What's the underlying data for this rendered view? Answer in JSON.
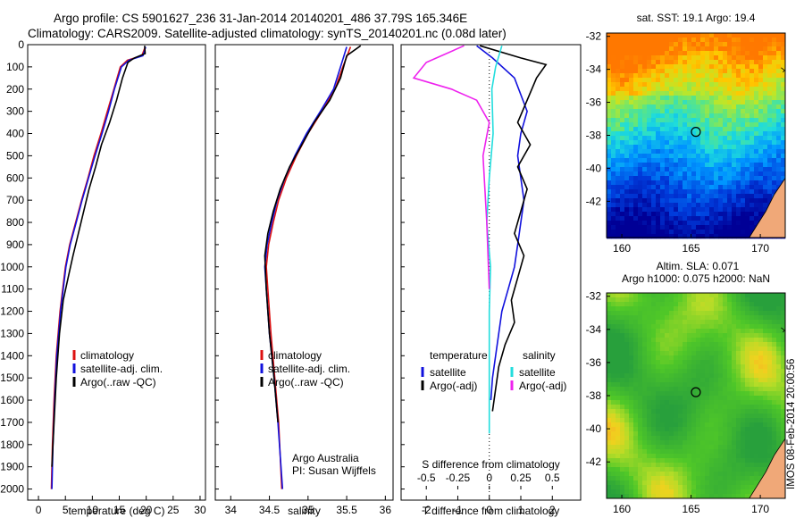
{
  "titles": {
    "line1": "Argo profile: CS 5901627_236 31-Jan-2014 20140201_486 37.79S 165.346E",
    "line2": "Climatology: CARS2009. Satellite-adjusted climatology: synTS_20140201.nc (0.08d later)"
  },
  "credits": {
    "line1": "Argo Australia",
    "line2": "PI: Susan Wijffels"
  },
  "watermark": "IMOS 08-Feb-2014 20:00:56",
  "colors": {
    "climatology": "#dd1111",
    "satellite": "#1111dd",
    "argo": "#000000",
    "sal_satellite": "#22dddd",
    "sal_argo": "#ee22ee"
  },
  "chart_data": [
    {
      "id": "temperature",
      "type": "line",
      "xlabel": "temperature (deg C)",
      "ylabel": "",
      "xlim": [
        -2,
        31
      ],
      "ylim": [
        2050,
        0
      ],
      "xticks": [
        0,
        5,
        10,
        15,
        20,
        25,
        30
      ],
      "yticks": [
        0,
        100,
        200,
        300,
        400,
        500,
        600,
        700,
        800,
        900,
        1000,
        1100,
        1200,
        1300,
        1400,
        1500,
        1600,
        1700,
        1800,
        1900,
        2000
      ],
      "legend": {
        "position": "center-left",
        "entries": [
          "climatology",
          "satellite-adj. clim.",
          "Argo(..raw -QC)"
        ]
      },
      "series": [
        {
          "name": "climatology",
          "x": [
            19.8,
            19.2,
            16.5,
            15.2,
            14.0,
            12.8,
            11.6,
            10.3,
            9.2,
            8.0,
            6.9,
            5.8,
            5.0,
            4.0,
            3.3,
            2.9,
            2.6,
            2.4
          ],
          "depth": [
            10,
            50,
            70,
            100,
            200,
            300,
            400,
            500,
            600,
            700,
            800,
            900,
            1000,
            1200,
            1400,
            1600,
            1800,
            2000
          ]
        },
        {
          "name": "satellite-adj. clim.",
          "x": [
            19.9,
            19.4,
            16.8,
            15.4,
            14.1,
            13.0,
            11.8,
            10.5,
            9.3,
            8.1,
            7.0,
            5.9,
            5.1,
            4.1,
            3.4,
            3.0,
            2.7,
            2.5
          ],
          "depth": [
            10,
            50,
            70,
            100,
            200,
            300,
            400,
            500,
            600,
            700,
            800,
            900,
            1000,
            1200,
            1400,
            1600,
            1800,
            2000
          ]
        },
        {
          "name": "Argo(..raw -QC)",
          "x": [
            19.7,
            19.8,
            17.8,
            16.6,
            15.6,
            14.5,
            13.2,
            11.7,
            10.6,
            9.4,
            8.4,
            7.4,
            6.4,
            5.5,
            4.6,
            3.9,
            3.3,
            2.9,
            2.5
          ],
          "depth": [
            5,
            40,
            60,
            80,
            150,
            250,
            350,
            450,
            550,
            650,
            750,
            850,
            950,
            1050,
            1150,
            1300,
            1500,
            1700,
            1900
          ]
        }
      ]
    },
    {
      "id": "salinity",
      "type": "line",
      "xlabel": "salinity",
      "xlim": [
        33.8,
        36.1
      ],
      "ylim": [
        2050,
        0
      ],
      "xticks": [
        34,
        34.5,
        35,
        35.5,
        36
      ],
      "legend": {
        "position": "center-left",
        "entries": [
          "climatology",
          "satellite-adj. clim.",
          "Argo(..raw -QC)"
        ]
      },
      "series": [
        {
          "name": "climatology",
          "x": [
            35.55,
            35.45,
            35.35,
            35.18,
            35.0,
            34.85,
            34.72,
            34.62,
            34.55,
            34.49,
            34.46,
            34.48,
            34.52,
            34.57,
            34.62,
            34.66
          ],
          "depth": [
            10,
            100,
            200,
            300,
            400,
            500,
            600,
            700,
            800,
            900,
            1000,
            1100,
            1300,
            1500,
            1700,
            2000
          ]
        },
        {
          "name": "satellite-adj. clim.",
          "x": [
            35.5,
            35.42,
            35.33,
            35.16,
            34.98,
            34.83,
            34.7,
            34.6,
            34.53,
            34.47,
            34.44,
            34.46,
            34.5,
            34.56,
            34.61,
            34.67
          ],
          "depth": [
            10,
            100,
            200,
            300,
            400,
            500,
            600,
            700,
            800,
            900,
            1000,
            1100,
            1300,
            1500,
            1700,
            2000
          ]
        },
        {
          "name": "Argo(..raw -QC)",
          "x": [
            35.68,
            35.5,
            35.42,
            35.28,
            35.08,
            34.92,
            34.76,
            34.64,
            34.55,
            34.48,
            34.44,
            34.46,
            34.5,
            34.56,
            34.61
          ],
          "depth": [
            5,
            50,
            150,
            250,
            350,
            450,
            550,
            650,
            750,
            850,
            950,
            1100,
            1300,
            1500,
            1700
          ]
        }
      ]
    },
    {
      "id": "differences",
      "type": "line",
      "xlabel": "T difference from climatology",
      "xlabel_top": "S difference from climatology",
      "xlim": [
        -2.8,
        2.9
      ],
      "ylim": [
        2050,
        0
      ],
      "xticks": [
        -2,
        -1,
        0,
        1,
        2
      ],
      "s_xticks": [
        -0.5,
        -0.25,
        0,
        0.25,
        0.5
      ],
      "legend": {
        "position": "center",
        "groups": [
          {
            "title": "temperature",
            "entries": [
              "satellite",
              "Argo(-adj)"
            ]
          },
          {
            "title": "salinity",
            "entries": [
              "satellite",
              "Argo(-adj)"
            ]
          }
        ]
      },
      "series": [
        {
          "name": "temperature satellite",
          "x": [
            -0.4,
            0.1,
            0.8,
            1.2,
            1.0,
            0.9,
            1.0,
            1.1,
            1.0,
            0.9,
            0.8,
            0.6,
            0.4,
            0.3,
            0.2,
            0.1,
            0.05
          ],
          "depth": [
            5,
            60,
            150,
            300,
            400,
            500,
            600,
            700,
            800,
            900,
            1000,
            1100,
            1200,
            1300,
            1400,
            1500,
            1600
          ]
        },
        {
          "name": "temperature Argo(-adj)",
          "x": [
            -0.3,
            1.0,
            1.8,
            1.5,
            1.2,
            0.9,
            1.3,
            0.9,
            1.2,
            1.0,
            0.8,
            1.1,
            0.9,
            0.7,
            0.8,
            0.5,
            0.3,
            0.2,
            0.1
          ],
          "depth": [
            5,
            60,
            90,
            150,
            250,
            350,
            450,
            550,
            650,
            750,
            850,
            950,
            1050,
            1150,
            1250,
            1350,
            1450,
            1550,
            1650
          ]
        },
        {
          "name": "salinity satellite",
          "x": [
            0.1,
            0.05,
            0.02,
            0.03,
            0.0,
            -0.02,
            0.01,
            0.0,
            0.0,
            0.0
          ],
          "depth": [
            5,
            100,
            200,
            400,
            600,
            800,
            1000,
            1200,
            1500,
            1750
          ]
        },
        {
          "name": "salinity Argo(-adj)",
          "x": [
            -0.2,
            -0.5,
            -0.6,
            -0.3,
            -0.1,
            0.0,
            -0.05,
            -0.02,
            0.0
          ],
          "depth": [
            5,
            80,
            150,
            200,
            250,
            350,
            500,
            800,
            1100
          ]
        }
      ]
    },
    {
      "id": "sst_map",
      "type": "heatmap",
      "title": "sat. SST: 19.1 Argo: 19.4",
      "xticks": [
        160,
        165,
        170
      ],
      "yticks": [
        -32,
        -34,
        -36,
        -38,
        -40,
        -42
      ],
      "marker": {
        "lon": 165.346,
        "lat": -37.79
      }
    },
    {
      "id": "sla_map",
      "type": "heatmap",
      "title_line1": "Altim. SLA: 0.071",
      "title_line2": "Argo h1000: 0.075 h2000: NaN",
      "xticks": [
        160,
        165,
        170
      ],
      "yticks": [
        -32,
        -34,
        -36,
        -38,
        -40,
        -42
      ],
      "marker": {
        "lon": 165.346,
        "lat": -37.79
      }
    }
  ]
}
